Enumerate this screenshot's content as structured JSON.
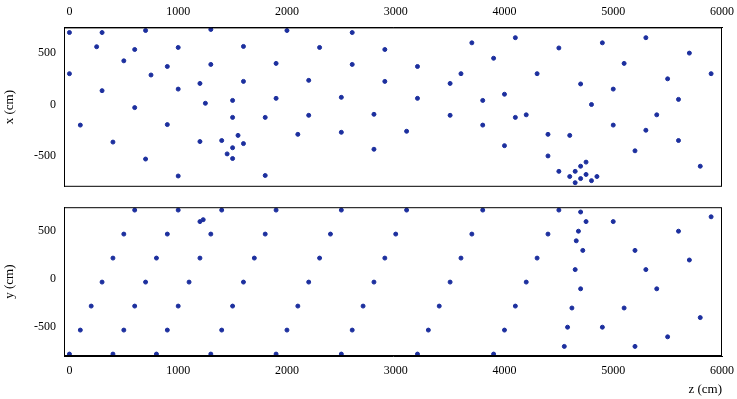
{
  "chart_data": [
    {
      "type": "scatter",
      "ylabel": "x (cm)",
      "color": "#1c2f9e",
      "grid": false,
      "xlim": [
        -50,
        6000
      ],
      "xticks": [
        0,
        1000,
        2000,
        3000,
        4000,
        5000,
        6000
      ],
      "ylim": [
        -800,
        750
      ],
      "yticks": [
        -500,
        0,
        500
      ],
      "x": [
        0,
        250,
        500,
        750,
        1000,
        1250,
        1500,
        300,
        600,
        900,
        1200,
        1500,
        1800,
        2100,
        700,
        1000,
        1300,
        1600,
        1900,
        2200,
        2500,
        2800,
        1300,
        1600,
        1900,
        2200,
        2500,
        2800,
        3100,
        0,
        300,
        600,
        900,
        1200,
        1500,
        1800,
        2000,
        2300,
        2600,
        2900,
        3200,
        3500,
        100,
        400,
        700,
        1000,
        2600,
        2900,
        3200,
        3500,
        3800,
        4100,
        4400,
        3700,
        3900,
        4100,
        4300,
        4500,
        4700,
        4900,
        5100,
        5300,
        5500,
        5700,
        5900,
        3800,
        4000,
        4200,
        4400,
        4600,
        5000,
        5200,
        5400,
        5600,
        5800,
        4000,
        4800,
        5600,
        3600,
        5000,
        5300,
        4500,
        4600,
        4650,
        4700,
        4750,
        4800,
        4700,
        4650,
        4750,
        4850,
        1400,
        1500,
        1600,
        1450,
        1550
      ],
      "values": [
        700,
        562,
        425,
        287,
        150,
        12,
        -125,
        700,
        535,
        370,
        205,
        40,
        -125,
        -290,
        720,
        555,
        390,
        225,
        60,
        -105,
        -270,
        -435,
        730,
        565,
        400,
        235,
        70,
        -95,
        -260,
        300,
        135,
        -30,
        -195,
        -360,
        -525,
        -690,
        720,
        555,
        390,
        225,
        60,
        -105,
        -200,
        -365,
        -530,
        -695,
        700,
        535,
        370,
        205,
        40,
        -125,
        -290,
        600,
        450,
        650,
        300,
        550,
        200,
        600,
        400,
        650,
        250,
        500,
        300,
        -200,
        -400,
        -100,
        -500,
        -300,
        -200,
        -450,
        -100,
        -350,
        -600,
        100,
        0,
        50,
        300,
        150,
        -250,
        -650,
        -700,
        -650,
        -720,
        -680,
        -740,
        -600,
        -760,
        -560,
        -700,
        -350,
        -420,
        -380,
        -480,
        -300
      ]
    },
    {
      "type": "scatter",
      "xlabel": "z (cm)",
      "ylabel": "y (cm)",
      "color": "#1c2f9e",
      "grid": false,
      "xlim": [
        -50,
        6000
      ],
      "xticks": [
        0,
        1000,
        2000,
        3000,
        4000,
        5000,
        6000
      ],
      "ylim": [
        -800,
        750
      ],
      "yticks": [
        -500,
        0,
        500
      ],
      "x": [
        0,
        100,
        200,
        300,
        400,
        500,
        600,
        400,
        500,
        600,
        700,
        800,
        900,
        1000,
        800,
        900,
        1000,
        1100,
        1200,
        1300,
        1400,
        1300,
        1400,
        1500,
        1600,
        1700,
        1800,
        1900,
        1900,
        2000,
        2100,
        2200,
        2300,
        2400,
        2500,
        2500,
        2600,
        2700,
        2800,
        2900,
        3000,
        3100,
        3200,
        3300,
        3400,
        3500,
        3600,
        3700,
        3800,
        3900,
        4000,
        4100,
        4200,
        4300,
        4400,
        4500,
        4700,
        4680,
        4720,
        4650,
        4700,
        4620,
        4580,
        4550,
        4750,
        4660,
        5000,
        5200,
        5400,
        5600,
        5800,
        5100,
        5300,
        5500,
        5700,
        5900,
        4900,
        5200,
        1200,
        1230
      ],
      "values": [
        -780,
        -530,
        -280,
        -30,
        220,
        470,
        720,
        -780,
        -530,
        -280,
        -30,
        220,
        470,
        720,
        -780,
        -530,
        -280,
        -30,
        220,
        470,
        720,
        -780,
        -530,
        -280,
        -30,
        220,
        470,
        720,
        -780,
        -530,
        -280,
        -30,
        220,
        470,
        720,
        -780,
        -530,
        -280,
        -30,
        220,
        470,
        720,
        -780,
        -530,
        -280,
        -30,
        220,
        470,
        720,
        -780,
        -530,
        -280,
        -30,
        220,
        470,
        720,
        700,
        500,
        300,
        100,
        -100,
        -300,
        -500,
        -700,
        600,
        400,
        600,
        300,
        -100,
        500,
        -400,
        -300,
        100,
        -600,
        200,
        650,
        -500,
        -700,
        600,
        620
      ]
    }
  ]
}
